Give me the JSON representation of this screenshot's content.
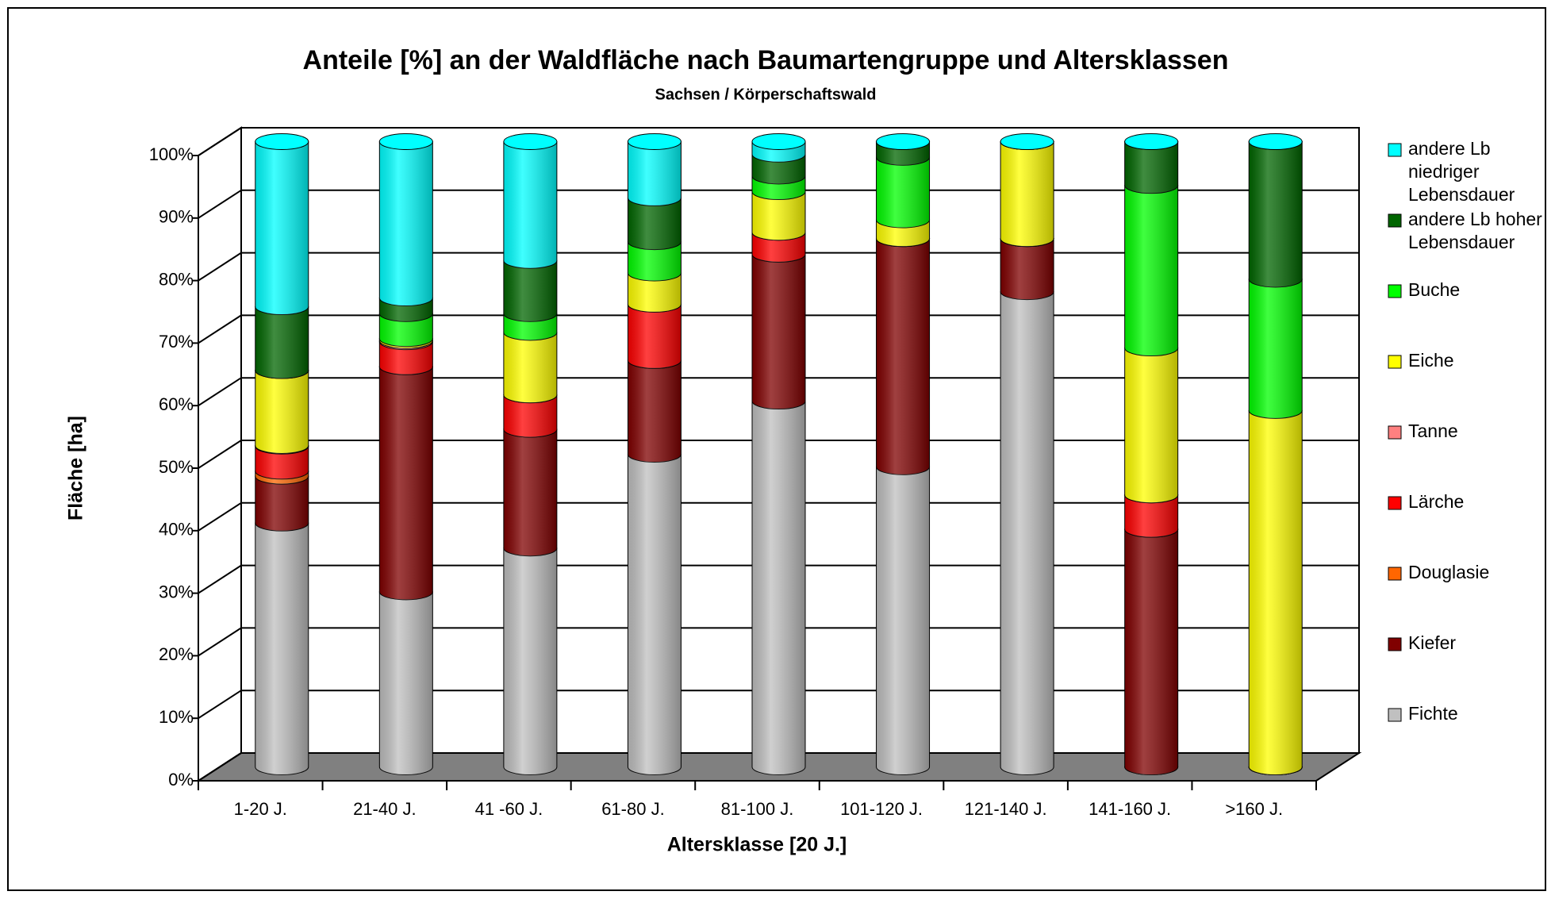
{
  "chart_data": {
    "type": "stacked_bar_3d",
    "title": "Anteile [%] an der Waldfläche nach Baumartengruppe und Altersklassen",
    "subtitle": "Sachsen / Körperschaftswald",
    "x_label": "Altersklasse [20 J.]",
    "y_label": "Fläche [ha]",
    "categories": [
      "1-20 J.",
      "21-40 J.",
      "41 -60 J.",
      "61-80 J.",
      "81-100 J.",
      "101-120 J.",
      "121-140 J.",
      "141-160 J.",
      ">160 J."
    ],
    "ylim": [
      0,
      100
    ],
    "yticks": [
      {
        "value": 0,
        "label": "0%"
      },
      {
        "value": 10,
        "label": "10%"
      },
      {
        "value": 20,
        "label": "20%"
      },
      {
        "value": 30,
        "label": "30%"
      },
      {
        "value": 40,
        "label": "40%"
      },
      {
        "value": 50,
        "label": "50%"
      },
      {
        "value": 60,
        "label": "60%"
      },
      {
        "value": 70,
        "label": "70%"
      },
      {
        "value": 80,
        "label": "80%"
      },
      {
        "value": 90,
        "label": "90%"
      },
      {
        "value": 100,
        "label": "100%"
      }
    ],
    "grid": true,
    "legend": "right",
    "series": [
      {
        "name": "Fichte",
        "color": "#c0c0c0",
        "values": [
          39,
          28,
          35,
          50,
          58.5,
          48,
          76,
          0,
          0
        ]
      },
      {
        "name": "Kiefer",
        "color": "#800000",
        "values": [
          7.5,
          36,
          19,
          15,
          23.5,
          36.5,
          8.5,
          38,
          0
        ]
      },
      {
        "name": "Douglasie",
        "color": "#ff6600",
        "values": [
          0.8,
          0,
          0,
          0,
          0,
          0,
          0,
          0,
          0
        ]
      },
      {
        "name": "Lärche",
        "color": "#ff0000",
        "values": [
          4,
          4,
          5.5,
          9,
          3.5,
          0,
          0,
          5.5,
          0
        ]
      },
      {
        "name": "Tanne",
        "color": "#ff8080",
        "values": [
          0.1,
          0.2,
          0,
          0,
          0,
          0,
          0,
          0,
          0
        ]
      },
      {
        "name": "Eiche",
        "color": "#ffff00",
        "values": [
          12,
          0.3,
          10,
          5,
          6.5,
          3,
          15.5,
          23.5,
          57
        ]
      },
      {
        "name": "Buche",
        "color": "#00ff00",
        "values": [
          0,
          4,
          3,
          5,
          2.5,
          10,
          0,
          26,
          21
        ]
      },
      {
        "name": "andere Lb hoher Lebensdauer",
        "color": "#006600",
        "values": [
          10.2,
          2.5,
          8.5,
          7,
          3.5,
          2.5,
          0,
          7,
          22
        ]
      },
      {
        "name": "andere Lb niedriger Lebensdauer",
        "color": "#00ffff",
        "values": [
          26.4,
          25,
          19,
          9,
          2,
          0,
          0,
          0,
          0
        ]
      }
    ]
  }
}
